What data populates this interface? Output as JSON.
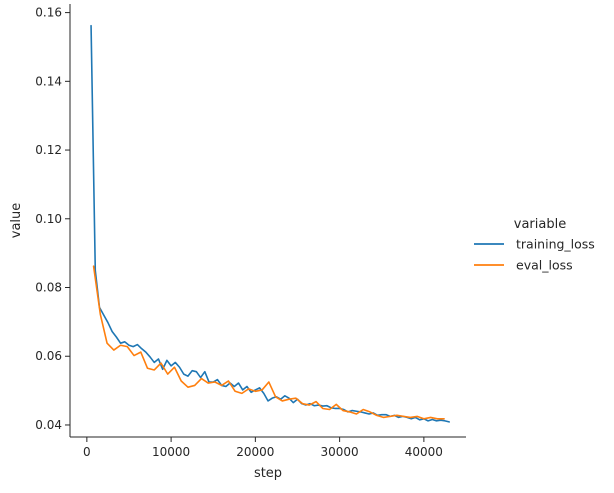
{
  "chart_data": {
    "type": "line",
    "title": "",
    "xlabel": "step",
    "ylabel": "value",
    "xlim": [
      -2000,
      45000
    ],
    "ylim": [
      0.0365,
      0.1625
    ],
    "xticks": [
      0,
      10000,
      20000,
      30000,
      40000
    ],
    "yticks": [
      0.04,
      0.06,
      0.08,
      0.1,
      0.12,
      0.14,
      0.16
    ],
    "xtick_labels": [
      "0",
      "10000",
      "20000",
      "30000",
      "40000"
    ],
    "ytick_labels": [
      "0.04",
      "0.06",
      "0.08",
      "0.10",
      "0.12",
      "0.14",
      "0.16"
    ],
    "grid": false,
    "legend": {
      "title": "variable",
      "placement": "right",
      "entries": [
        "training_loss",
        "eval_loss"
      ]
    },
    "series": [
      {
        "name": "training_loss",
        "color": "#1f77b4",
        "x": [
          500,
          1000,
          1500,
          2000,
          2500,
          3000,
          3500,
          4000,
          4500,
          5000,
          5500,
          6000,
          6500,
          7000,
          7500,
          8000,
          8500,
          9000,
          9500,
          10000,
          10500,
          11000,
          11500,
          12000,
          12500,
          13000,
          13500,
          14000,
          14500,
          15000,
          15500,
          16000,
          16500,
          17000,
          17500,
          18000,
          18500,
          19000,
          19500,
          20000,
          20500,
          21000,
          21500,
          22000,
          22500,
          23000,
          23500,
          24000,
          24500,
          25000,
          25500,
          26000,
          26500,
          27000,
          27500,
          28000,
          28500,
          29000,
          29500,
          30000,
          30500,
          31000,
          31500,
          32000,
          32500,
          33000,
          33500,
          34000,
          34500,
          35000,
          35500,
          36000,
          36500,
          37000,
          37500,
          38000,
          38500,
          39000,
          39500,
          40000,
          40500,
          41000,
          41500,
          42000,
          42500,
          43000
        ],
        "values": [
          0.1562,
          0.085,
          0.0742,
          0.072,
          0.0698,
          0.0672,
          0.0656,
          0.0638,
          0.0642,
          0.0632,
          0.0628,
          0.0634,
          0.0622,
          0.0612,
          0.0598,
          0.0582,
          0.0592,
          0.0562,
          0.0588,
          0.0572,
          0.0582,
          0.0568,
          0.0548,
          0.0542,
          0.0558,
          0.0555,
          0.0538,
          0.0555,
          0.0525,
          0.0525,
          0.0532,
          0.0515,
          0.0512,
          0.0522,
          0.0512,
          0.0522,
          0.0502,
          0.0512,
          0.0495,
          0.0502,
          0.0508,
          0.0492,
          0.047,
          0.0478,
          0.0482,
          0.0475,
          0.0485,
          0.0478,
          0.0465,
          0.0475,
          0.0462,
          0.0458,
          0.0462,
          0.0456,
          0.0458,
          0.0455,
          0.0456,
          0.045,
          0.0448,
          0.0448,
          0.0445,
          0.0438,
          0.0442,
          0.044,
          0.0438,
          0.0435,
          0.0432,
          0.0435,
          0.0428,
          0.043,
          0.043,
          0.0425,
          0.0428,
          0.0422,
          0.0425,
          0.0422,
          0.0418,
          0.0422,
          0.0415,
          0.0418,
          0.0412,
          0.0416,
          0.0412,
          0.0414,
          0.0412,
          0.0409
        ]
      },
      {
        "name": "eval_loss",
        "color": "#ff7f0e",
        "x": [
          800,
          1600,
          2400,
          3200,
          4000,
          4800,
          5600,
          6400,
          7200,
          8000,
          8800,
          9600,
          10400,
          11200,
          12000,
          12800,
          13600,
          14400,
          15200,
          16000,
          16800,
          17600,
          18400,
          19200,
          20000,
          20800,
          21600,
          22400,
          23200,
          24000,
          24800,
          25600,
          26400,
          27200,
          28000,
          28800,
          29600,
          30400,
          31200,
          32000,
          32800,
          33600,
          34400,
          35200,
          36000,
          36800,
          37600,
          38400,
          39200,
          40000,
          40800,
          41600,
          42400
        ],
        "values": [
          0.0862,
          0.0722,
          0.0638,
          0.0618,
          0.0632,
          0.0628,
          0.0602,
          0.0612,
          0.0565,
          0.056,
          0.058,
          0.0548,
          0.0568,
          0.0528,
          0.051,
          0.0515,
          0.0535,
          0.0522,
          0.0525,
          0.0515,
          0.0528,
          0.0498,
          0.0492,
          0.0505,
          0.0498,
          0.0502,
          0.0525,
          0.0482,
          0.047,
          0.0475,
          0.0478,
          0.0462,
          0.0458,
          0.0468,
          0.0448,
          0.0445,
          0.046,
          0.0442,
          0.0438,
          0.0432,
          0.0445,
          0.0438,
          0.0428,
          0.0422,
          0.0425,
          0.0428,
          0.0425,
          0.0422,
          0.0425,
          0.0418,
          0.0422,
          0.0418,
          0.0418
        ]
      }
    ]
  }
}
